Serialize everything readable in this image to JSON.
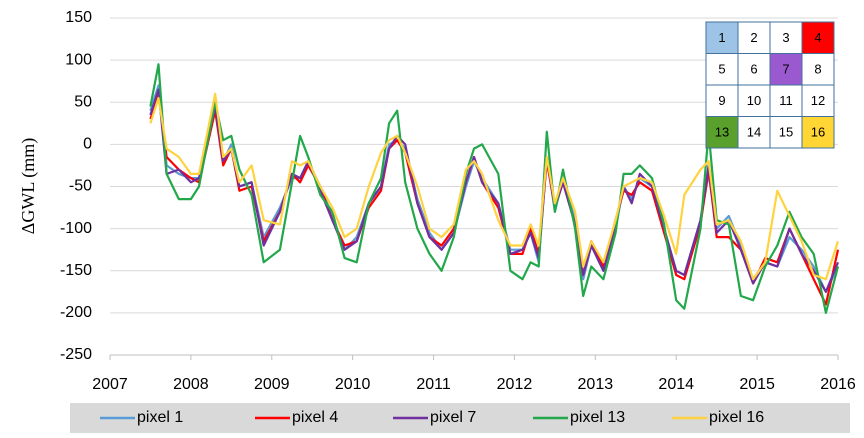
{
  "chart_data": {
    "type": "line",
    "y_label": "ΔGWL (mm)",
    "x": [
      2007.5,
      2007.6,
      2007.7,
      2007.85,
      2008.0,
      2008.1,
      2008.3,
      2008.4,
      2008.5,
      2008.6,
      2008.75,
      2008.9,
      2009.1,
      2009.25,
      2009.35,
      2009.45,
      2009.6,
      2009.75,
      2009.9,
      2010.05,
      2010.2,
      2010.35,
      2010.45,
      2010.55,
      2010.65,
      2010.8,
      2010.95,
      2011.1,
      2011.25,
      2011.4,
      2011.5,
      2011.6,
      2011.8,
      2011.95,
      2012.1,
      2012.2,
      2012.3,
      2012.4,
      2012.5,
      2012.6,
      2012.75,
      2012.85,
      2012.95,
      2013.1,
      2013.25,
      2013.35,
      2013.45,
      2013.55,
      2013.7,
      2013.85,
      2014.0,
      2014.1,
      2014.3,
      2014.4,
      2014.5,
      2014.65,
      2014.8,
      2014.95,
      2015.1,
      2015.25,
      2015.4,
      2015.55,
      2015.7,
      2015.85,
      2016.0
    ],
    "series": [
      {
        "name": "pixel 1",
        "color": "#5b9bd5",
        "values": [
          40,
          70,
          -25,
          -35,
          -40,
          -40,
          45,
          -20,
          0,
          -50,
          -45,
          -110,
          -75,
          -40,
          -40,
          -20,
          -50,
          -85,
          -125,
          -110,
          -70,
          -50,
          0,
          5,
          -5,
          -65,
          -105,
          -125,
          -105,
          -50,
          -20,
          -40,
          -70,
          -125,
          -125,
          -105,
          -140,
          -15,
          -80,
          -40,
          -90,
          -160,
          -120,
          -150,
          -100,
          -50,
          -65,
          -40,
          -50,
          -100,
          -150,
          -155,
          -90,
          -35,
          -100,
          -85,
          -120,
          -160,
          -140,
          -145,
          -110,
          -125,
          -145,
          -175,
          -145
        ]
      },
      {
        "name": "pixel 4",
        "color": "#ff0000",
        "values": [
          30,
          60,
          -15,
          -30,
          -40,
          -45,
          40,
          -25,
          -5,
          -55,
          -50,
          -115,
          -80,
          -35,
          -45,
          -25,
          -50,
          -90,
          -120,
          -115,
          -75,
          -55,
          -5,
          5,
          -10,
          -70,
          -110,
          -120,
          -100,
          -45,
          -15,
          -45,
          -75,
          -130,
          -130,
          -100,
          -130,
          -20,
          -75,
          -45,
          -95,
          -155,
          -115,
          -145,
          -90,
          -55,
          -60,
          -45,
          -55,
          -105,
          -155,
          -160,
          -95,
          -30,
          -110,
          -110,
          -125,
          -165,
          -135,
          -140,
          -100,
          -130,
          -160,
          -190,
          -125
        ]
      },
      {
        "name": "pixel 7",
        "color": "#7030a0",
        "values": [
          35,
          65,
          -35,
          -30,
          -45,
          -40,
          45,
          -20,
          -5,
          -50,
          -45,
          -120,
          -80,
          -35,
          -40,
          -20,
          -55,
          -90,
          -125,
          -115,
          -70,
          -50,
          -5,
          10,
          0,
          -70,
          -110,
          -125,
          -105,
          -45,
          -15,
          -45,
          -70,
          -130,
          -125,
          -105,
          -135,
          -15,
          -75,
          -45,
          -95,
          -155,
          -120,
          -150,
          -95,
          -50,
          -70,
          -35,
          -50,
          -100,
          -150,
          -155,
          -90,
          -25,
          -105,
          -90,
          -125,
          -165,
          -140,
          -145,
          -100,
          -130,
          -150,
          -175,
          -140
        ]
      },
      {
        "name": "pixel 13",
        "color": "#22a84a",
        "values": [
          45,
          95,
          -35,
          -65,
          -65,
          -50,
          50,
          5,
          10,
          -30,
          -60,
          -140,
          -125,
          -45,
          10,
          -15,
          -60,
          -80,
          -135,
          -140,
          -70,
          -40,
          25,
          40,
          -45,
          -100,
          -130,
          -150,
          -110,
          -35,
          -5,
          0,
          -35,
          -150,
          -160,
          -140,
          -145,
          15,
          -80,
          -30,
          -100,
          -180,
          -145,
          -160,
          -105,
          -35,
          -35,
          -25,
          -40,
          -95,
          -185,
          -195,
          -100,
          15,
          -90,
          -95,
          -180,
          -185,
          -145,
          -120,
          -80,
          -110,
          -130,
          -200,
          -145
        ]
      },
      {
        "name": "pixel 16",
        "color": "#ffd23f",
        "values": [
          25,
          55,
          -5,
          -15,
          -35,
          -35,
          60,
          -15,
          -5,
          -45,
          -25,
          -90,
          -95,
          -20,
          -25,
          -20,
          -50,
          -75,
          -110,
          -100,
          -50,
          -10,
          5,
          10,
          -10,
          -50,
          -100,
          -110,
          -95,
          -30,
          -20,
          -35,
          -90,
          -120,
          -120,
          -95,
          -120,
          -15,
          -70,
          -40,
          -80,
          -145,
          -115,
          -140,
          -90,
          -50,
          -45,
          -40,
          -45,
          -85,
          -130,
          -60,
          -30,
          -20,
          -95,
          -90,
          -115,
          -160,
          -140,
          -55,
          -85,
          -115,
          -155,
          -160,
          -115
        ]
      }
    ],
    "xlim": [
      2007,
      2016
    ],
    "xticks": [
      2007,
      2008,
      2009,
      2010,
      2011,
      2012,
      2013,
      2014,
      2015,
      2016
    ],
    "ylim": [
      -250,
      150
    ],
    "yticks": [
      -250,
      -200,
      -150,
      -100,
      -50,
      0,
      50,
      100,
      150
    ],
    "grid": true,
    "legend_position": "bottom",
    "inset_cells": [
      {
        "label": "1",
        "color": "#9dc3e6"
      },
      {
        "label": "2"
      },
      {
        "label": "3"
      },
      {
        "label": "4",
        "color": "#ff0000"
      },
      {
        "label": "5"
      },
      {
        "label": "6"
      },
      {
        "label": "7",
        "color": "#9b59d0"
      },
      {
        "label": "8"
      },
      {
        "label": "9"
      },
      {
        "label": "10"
      },
      {
        "label": "11"
      },
      {
        "label": "12"
      },
      {
        "label": "13",
        "color": "#5aa02c"
      },
      {
        "label": "14"
      },
      {
        "label": "15"
      },
      {
        "label": "16",
        "color": "#ffd633"
      }
    ]
  }
}
